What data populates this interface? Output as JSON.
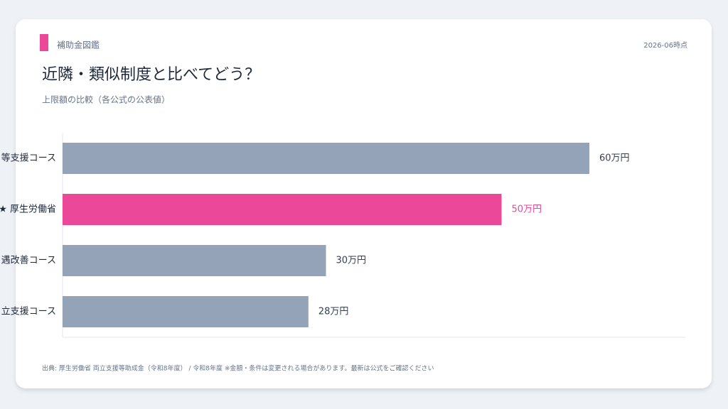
{
  "brand": "補助金図鑑",
  "date": "2026-06時点",
  "footer": "出典: 厚生労働省 両立支援等助成金（令和8年度） / 令和8年度 ※金額・条件は変更される場合があります。最新は公式をご確認ください",
  "chart_data": {
    "type": "hbar",
    "title": "近隣・類似制度と比べてどう？",
    "subtitle": "上限額の比較（各公式の公表値）",
    "categories": [
      "等支援コース",
      "★ 厚生労働省",
      "遇改善コース",
      "立支援コース"
    ],
    "values": [
      60,
      50,
      30,
      28
    ],
    "value_labels": [
      "60万円",
      "50万円",
      "30万円",
      "28万円"
    ],
    "colors": [
      "#94a3b8",
      "#ec4899",
      "#94a3b8",
      "#94a3b8"
    ],
    "xlim": [
      0,
      70
    ]
  }
}
